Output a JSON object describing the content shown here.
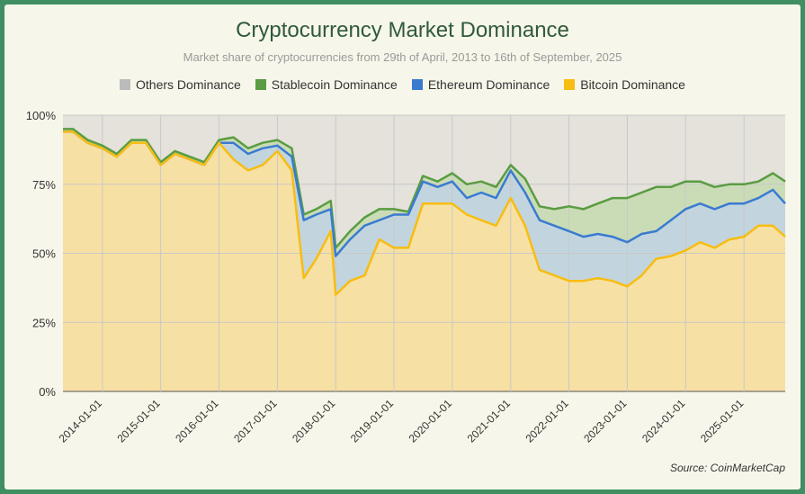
{
  "chart_data": {
    "type": "area",
    "title": "Cryptocurrency Market Dominance",
    "subtitle": "Market share of cryptocurrencies from 29th of April, 2013 to 16th of September, 2025",
    "source": "Source: CoinMarketCap",
    "ylim": [
      0,
      100
    ],
    "y_ticks": [
      "0%",
      "25%",
      "50%",
      "75%",
      "100%"
    ],
    "x_range": [
      "2013-04-29",
      "2025-09-16"
    ],
    "x_ticks": [
      "2014-01-01",
      "2015-01-01",
      "2016-01-01",
      "2017-01-01",
      "2018-01-01",
      "2019-01-01",
      "2020-01-01",
      "2021-01-01",
      "2022-01-01",
      "2023-01-01",
      "2024-01-01",
      "2025-01-01"
    ],
    "grid": true,
    "legend_position": "top",
    "stacking": "cumulative",
    "x": [
      "2013-04-29",
      "2013-07-01",
      "2013-10-01",
      "2014-01-01",
      "2014-04-01",
      "2014-07-01",
      "2014-10-01",
      "2015-01-01",
      "2015-04-01",
      "2015-07-01",
      "2015-10-01",
      "2016-01-01",
      "2016-04-01",
      "2016-07-01",
      "2016-10-01",
      "2017-01-01",
      "2017-04-01",
      "2017-06-15",
      "2017-09-01",
      "2017-12-01",
      "2018-01-01",
      "2018-04-01",
      "2018-07-01",
      "2018-10-01",
      "2019-01-01",
      "2019-04-01",
      "2019-07-01",
      "2019-10-01",
      "2020-01-01",
      "2020-04-01",
      "2020-07-01",
      "2020-10-01",
      "2021-01-01",
      "2021-04-01",
      "2021-07-01",
      "2021-10-01",
      "2022-01-01",
      "2022-04-01",
      "2022-07-01",
      "2022-10-01",
      "2023-01-01",
      "2023-04-01",
      "2023-07-01",
      "2023-10-01",
      "2024-01-01",
      "2024-04-01",
      "2024-07-01",
      "2024-10-01",
      "2025-01-01",
      "2025-04-01",
      "2025-07-01",
      "2025-09-16"
    ],
    "series": [
      {
        "name": "Bitcoin Dominance",
        "color": "#f7bd12",
        "values": [
          94,
          94,
          90,
          88,
          85,
          90,
          90,
          82,
          86,
          84,
          82,
          90,
          84,
          80,
          82,
          87,
          80,
          41,
          48,
          58,
          35,
          40,
          42,
          55,
          52,
          52,
          68,
          68,
          68,
          64,
          62,
          60,
          70,
          60,
          44,
          42,
          40,
          40,
          41,
          40,
          38,
          42,
          48,
          49,
          51,
          54,
          52,
          55,
          56,
          60,
          60,
          56
        ]
      },
      {
        "name": "Ethereum Dominance",
        "color": "#3a7bd0",
        "values": [
          94,
          94,
          90,
          88,
          85,
          90,
          90,
          82,
          86,
          84,
          82,
          90,
          90,
          86,
          88,
          89,
          85,
          62,
          64,
          66,
          49,
          55,
          60,
          62,
          64,
          64,
          76,
          74,
          76,
          70,
          72,
          70,
          80,
          72,
          62,
          60,
          58,
          56,
          57,
          56,
          54,
          57,
          58,
          62,
          66,
          68,
          66,
          68,
          68,
          70,
          73,
          68
        ]
      },
      {
        "name": "Stablecoin Dominance",
        "color": "#5a9c42",
        "values": [
          95,
          95,
          91,
          89,
          86,
          91,
          91,
          83,
          87,
          85,
          83,
          91,
          92,
          88,
          90,
          91,
          88,
          64,
          66,
          69,
          52,
          58,
          63,
          66,
          66,
          65,
          78,
          76,
          79,
          75,
          76,
          74,
          82,
          77,
          67,
          66,
          67,
          66,
          68,
          70,
          70,
          72,
          74,
          74,
          76,
          76,
          74,
          75,
          75,
          76,
          79,
          76
        ]
      },
      {
        "name": "Others Dominance",
        "color": "#bbbbbb",
        "values": [
          100,
          100,
          100,
          100,
          100,
          100,
          100,
          100,
          100,
          100,
          100,
          100,
          100,
          100,
          100,
          100,
          100,
          100,
          100,
          100,
          100,
          100,
          100,
          100,
          100,
          100,
          100,
          100,
          100,
          100,
          100,
          100,
          100,
          100,
          100,
          100,
          100,
          100,
          100,
          100,
          100,
          100,
          100,
          100,
          100,
          100,
          100,
          100,
          100,
          100,
          100,
          100
        ]
      }
    ],
    "fill_colors": {
      "Bitcoin Dominance": "#f7e0a3",
      "Ethereum Dominance": "#c2d5de",
      "Stablecoin Dominance": "#cadcb6",
      "Others Dominance": "#e4e2da"
    }
  }
}
